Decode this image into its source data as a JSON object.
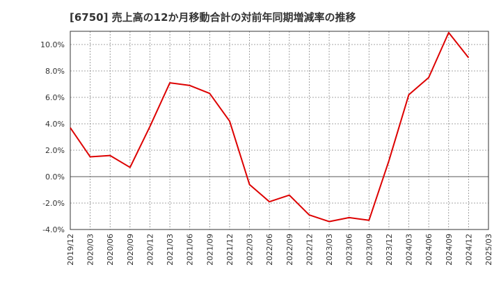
{
  "chart_data": {
    "type": "line",
    "title": "[6750]  売上高の12か月移動合計の対前年同期増減率の推移",
    "xlabel": "",
    "ylabel": "",
    "ylim": [
      -4.0,
      11.0
    ],
    "yticks": [
      -4.0,
      -2.0,
      0.0,
      2.0,
      4.0,
      6.0,
      8.0,
      10.0
    ],
    "ytick_labels": [
      "-4.0%",
      "-2.0%",
      "0.0%",
      "2.0%",
      "4.0%",
      "6.0%",
      "8.0%",
      "10.0%"
    ],
    "categories": [
      "2019/12",
      "2020/03",
      "2020/06",
      "2020/09",
      "2020/12",
      "2021/03",
      "2021/06",
      "2021/09",
      "2021/12",
      "2022/03",
      "2022/06",
      "2022/09",
      "2022/12",
      "2023/03",
      "2023/06",
      "2023/09",
      "2023/12",
      "2024/03",
      "2024/06",
      "2024/09",
      "2024/12",
      "2025/03"
    ],
    "series": [
      {
        "name": "対前年同期増減率",
        "color": "#dd0000",
        "values": [
          3.7,
          1.5,
          1.6,
          0.7,
          3.8,
          7.1,
          6.9,
          6.3,
          4.2,
          -0.6,
          -1.9,
          -1.4,
          -2.9,
          -3.4,
          -3.1,
          -3.3,
          1.2,
          6.2,
          7.5,
          10.9,
          9.0,
          null
        ]
      }
    ],
    "grid": true,
    "legend": "none"
  }
}
